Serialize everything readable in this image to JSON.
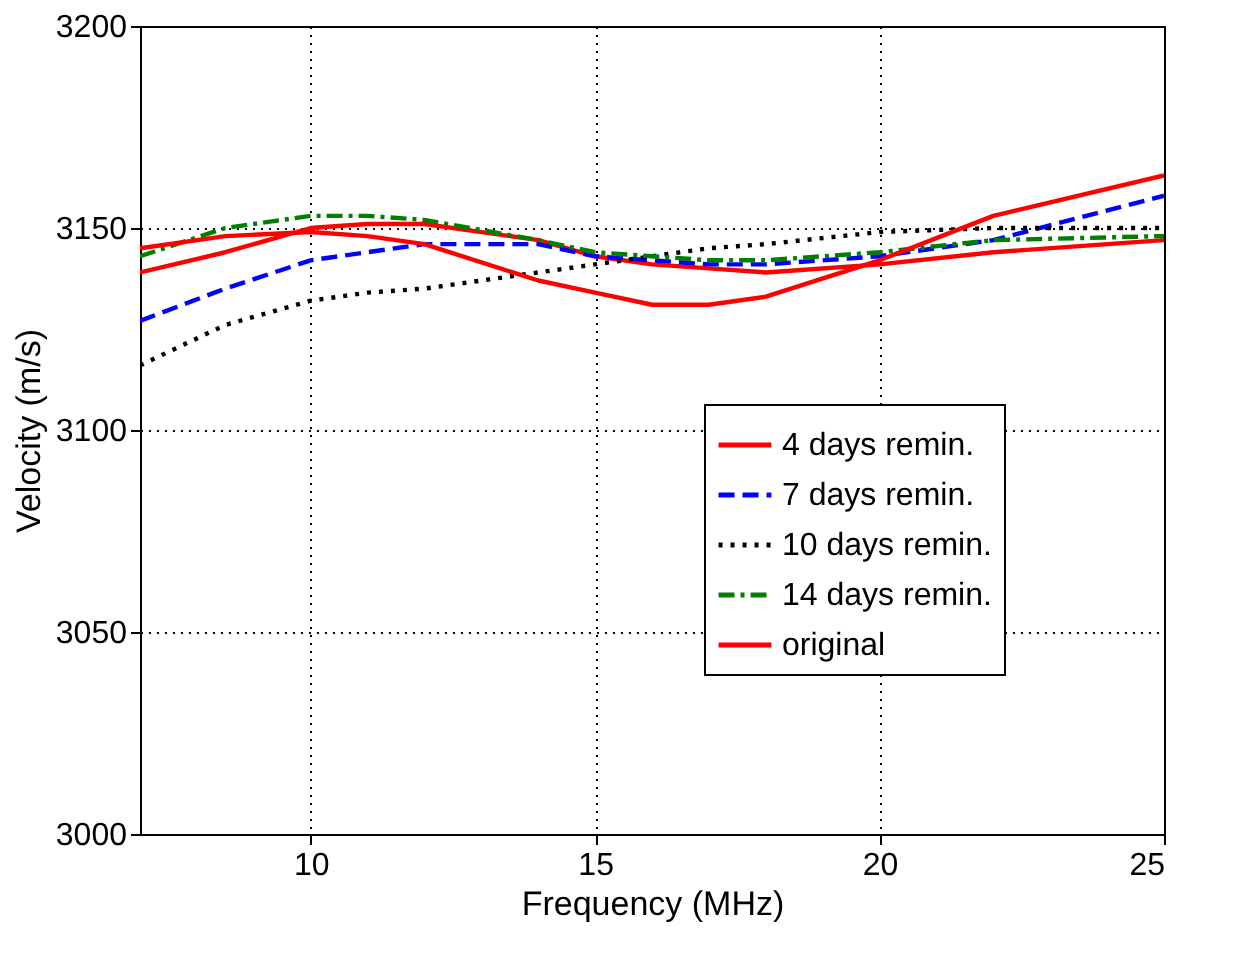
{
  "chart_data": {
    "type": "line",
    "xlabel": "Frequency (MHz)",
    "ylabel": "Velocity (m/s)",
    "xlim": [
      7,
      25
    ],
    "xticks": [
      10,
      15,
      20,
      25
    ],
    "ylim": [
      3000,
      3200
    ],
    "yticks": [
      3000,
      3050,
      3100,
      3150,
      3200
    ],
    "grid": true,
    "legend": "bottom right",
    "marker": "none",
    "x": [
      7,
      8.5,
      10,
      11,
      12,
      14,
      15,
      16,
      17,
      18,
      20,
      22,
      25
    ],
    "series": [
      {
        "name": "4 days remin.",
        "color": "#ff0000",
        "line_style": "solid",
        "values": [
          3139,
          3144,
          3150,
          3151,
          3151,
          3147,
          3143,
          3141,
          3140,
          3139,
          3141,
          3144,
          3147
        ]
      },
      {
        "name": "7 days remin.",
        "color": "#0000ff",
        "line_style": "dashed",
        "values": [
          3127,
          3135,
          3142,
          3144,
          3146,
          3146,
          3143,
          3142,
          3141,
          3141,
          3143,
          3147,
          3158
        ]
      },
      {
        "name": "10 days remin.",
        "color": "#000000",
        "line_style": "dotted",
        "values": [
          3116,
          3126,
          3132,
          3134,
          3135,
          3139,
          3141,
          3143,
          3145,
          3146,
          3149,
          3150,
          3150
        ]
      },
      {
        "name": "14 days remin.",
        "color": "#008000",
        "line_style": "dashdot",
        "values": [
          3143,
          3150,
          3153,
          3153,
          3152,
          3147,
          3144,
          3143,
          3142,
          3142,
          3144,
          3147,
          3148
        ]
      },
      {
        "name": "original",
        "color": "#ff0000",
        "line_style": "solid",
        "values": [
          3145,
          3148,
          3149,
          3148,
          3146,
          3137,
          3134,
          3131,
          3131,
          3133,
          3142,
          3153,
          3163
        ]
      }
    ]
  }
}
